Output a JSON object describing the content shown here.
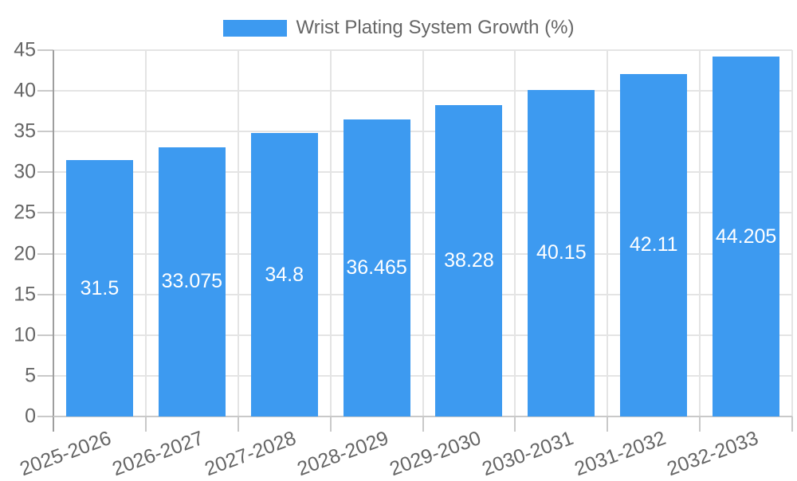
{
  "legend": {
    "items": [
      {
        "label": "Wrist Plating System Growth (%)",
        "color": "#3d9af0"
      }
    ]
  },
  "chart_data": {
    "type": "bar",
    "title": "Wrist Plating System Growth (%)",
    "legend_position": "top",
    "categories": [
      "2025-2026",
      "2026-2027",
      "2027-2028",
      "2028-2029",
      "2029-2030",
      "2030-2031",
      "2031-2032",
      "2032-2033"
    ],
    "values": [
      31.5,
      33.075,
      34.8,
      36.465,
      38.28,
      40.15,
      42.11,
      44.205
    ],
    "bar_labels": [
      "31.5",
      "33.075",
      "34.8",
      "36.465",
      "38.28",
      "40.15",
      "42.11",
      "44.205"
    ],
    "xlabel": "",
    "ylabel": "",
    "ylim": [
      0,
      45
    ],
    "y_ticks": [
      0,
      5,
      10,
      15,
      20,
      25,
      30,
      35,
      40,
      45
    ],
    "grid": true,
    "x_label_rotation_deg": -20,
    "colors": {
      "bar": "#3d9af0",
      "grid": "#e4e4e4",
      "axis": "#9e9e9e",
      "tick": "#c9c9c9",
      "text": "#666666",
      "bar_label": "#ffffff",
      "background": "#ffffff"
    }
  }
}
